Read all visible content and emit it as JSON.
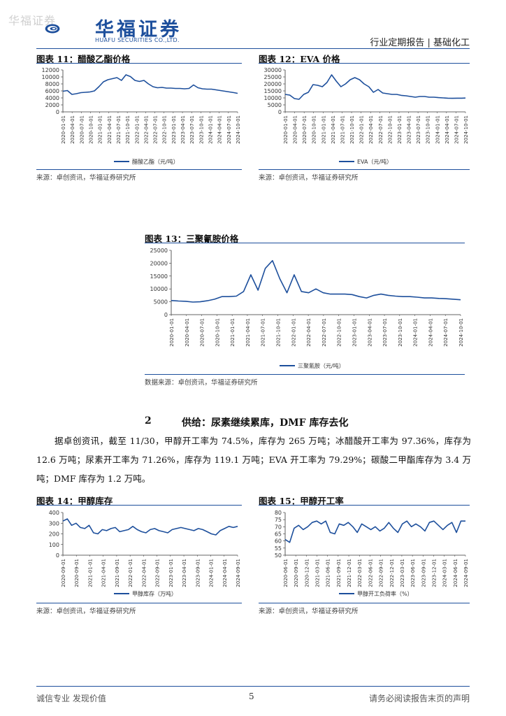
{
  "watermark": "华福证券",
  "header": {
    "logo_cn": "华福证券",
    "logo_en": "HUAFU SECURITIES CO.,LTD.",
    "right_text": "行业定期报告 | 基础化工",
    "brand_color": "#1d4f9c"
  },
  "figures": {
    "fig11": {
      "title": "图表 11：醋酸乙酯价格",
      "source": "来源：卓创资讯，华福证券研究所"
    },
    "fig12": {
      "title": "图表 12：EVA 价格",
      "source": "来源：卓创资讯，华福证券研究所"
    },
    "fig13": {
      "title": "图表 13：三聚氰胺价格",
      "source": "数据来源：卓创资讯，华福证券研究所"
    },
    "fig14": {
      "title": "图表 14：甲醇库存",
      "source": "来源：卓创资讯，华福证券研究所"
    },
    "fig15": {
      "title": "图表 15：甲醇开工率",
      "source": "来源：卓创资讯，华福证券研究所"
    }
  },
  "section": {
    "number": "2",
    "title": "供给：尿素继续累库，DMF 库存去化"
  },
  "paragraph": "据卓创资讯，截至 11/30，甲醇开工率为 74.5%，库存为 265 万吨；冰醋酸开工率为 97.36%，库存为 12.6 万吨；尿素开工率为 71.26%，库存为 119.1 万吨；EVA 开工率为 79.29%；碳酸二甲酯库存为 3.4 万吨；DMF 库存为 1.2 万吨。",
  "footer": {
    "left": "诚信专业  发现价值",
    "page": "5",
    "right": "请务必阅读报告末页的声明"
  },
  "chart_data": [
    {
      "id": "fig11",
      "type": "line",
      "title": "",
      "xlabel": "",
      "ylabel": "",
      "ylim": [
        0,
        12000
      ],
      "yticks": [
        0,
        2000,
        4000,
        6000,
        8000,
        10000,
        12000
      ],
      "xticklabels": [
        "2020-01-01",
        "2020-04-01",
        "2020-07-01",
        "2020-10-01",
        "2021-01-01",
        "2021-04-01",
        "2021-07-01",
        "2021-10-01",
        "2022-01-01",
        "2022-04-01",
        "2022-07-01",
        "2022-10-01",
        "2023-01-01",
        "2023-04-01",
        "2023-07-01",
        "2023-10-01",
        "2024-01-01",
        "2024-04-01",
        "2024-07-01",
        "2024-10-01"
      ],
      "series": [
        {
          "name": "醋酸乙酯（元/吨）",
          "color": "#1d4f9c",
          "x": [
            0,
            0.5,
            1,
            1.5,
            2,
            2.5,
            3,
            3.5,
            4,
            4.5,
            5,
            5.5,
            6,
            6.5,
            7,
            7.5,
            8,
            8.5,
            9,
            9.5,
            10,
            10.5,
            11,
            11.5,
            12,
            12.5,
            13,
            13.5,
            14,
            14.5,
            15,
            15.5,
            16,
            16.5,
            17,
            17.5,
            18,
            18.5,
            19,
            19.4
          ],
          "y": [
            5900,
            6100,
            5000,
            5200,
            5500,
            5600,
            5700,
            6000,
            7200,
            8600,
            9200,
            9500,
            9800,
            9000,
            10600,
            10100,
            9000,
            8700,
            9000,
            8000,
            7200,
            6900,
            7000,
            6800,
            6800,
            6700,
            6700,
            6600,
            6700,
            7700,
            6900,
            6600,
            6500,
            6500,
            6300,
            6100,
            5900,
            5700,
            5500,
            5300
          ]
        }
      ],
      "grid": false,
      "legend": "bottom"
    },
    {
      "id": "fig12",
      "type": "line",
      "title": "",
      "xlabel": "",
      "ylabel": "",
      "ylim": [
        0,
        30000
      ],
      "yticks": [
        0,
        5000,
        10000,
        15000,
        20000,
        25000,
        30000
      ],
      "xticklabels": [
        "2020-01-01",
        "2020-04-01",
        "2020-07-01",
        "2020-10-01",
        "2021-01-01",
        "2021-04-01",
        "2021-07-01",
        "2021-10-01",
        "2022-01-01",
        "2022-04-01",
        "2022-07-01",
        "2022-10-01",
        "2023-01-01",
        "2023-04-01",
        "2023-07-01",
        "2023-10-01",
        "2024-01-01",
        "2024-04-01",
        "2024-07-01",
        "2024-10-01"
      ],
      "series": [
        {
          "name": "EVA（元/吨）",
          "color": "#1d4f9c",
          "x": [
            0,
            0.5,
            1,
            1.5,
            2,
            2.5,
            3,
            3.5,
            4,
            4.5,
            5,
            5.5,
            6,
            6.5,
            7,
            7.5,
            8,
            8.5,
            9,
            9.5,
            10,
            10.5,
            11,
            11.5,
            12,
            12.5,
            13,
            13.5,
            14,
            14.5,
            15,
            15.5,
            16,
            16.5,
            17,
            17.5,
            18,
            18.5,
            19,
            19.4
          ],
          "y": [
            12500,
            12000,
            9500,
            9000,
            12500,
            14000,
            19500,
            19000,
            18000,
            21000,
            26500,
            22000,
            18000,
            20000,
            23000,
            24500,
            23000,
            20000,
            18000,
            14000,
            16000,
            13500,
            13000,
            12500,
            12500,
            11800,
            11500,
            11000,
            10500,
            11000,
            11000,
            10500,
            10500,
            10200,
            10000,
            9800,
            9700,
            9800,
            9800,
            9900
          ]
        }
      ],
      "grid": false,
      "legend": "bottom"
    },
    {
      "id": "fig13",
      "type": "line",
      "title": "",
      "xlabel": "",
      "ylabel": "",
      "ylim": [
        0,
        25000
      ],
      "yticks": [
        0,
        5000,
        10000,
        15000,
        20000,
        25000
      ],
      "xticklabels": [
        "2020-01-01",
        "2020-04-01",
        "2020-07-01",
        "2020-10-01",
        "2021-01-01",
        "2021-04-01",
        "2021-07-01",
        "2021-10-01",
        "2022-01-01",
        "2022-04-01",
        "2022-07-01",
        "2022-10-01",
        "2023-01-01",
        "2023-04-01",
        "2023-07-01",
        "2023-10-01",
        "2024-01-01",
        "2024-04-01",
        "2024-07-01",
        "2024-10-01"
      ],
      "series": [
        {
          "name": "三聚氰胺（元/吨）",
          "color": "#1d4f9c",
          "x": [
            0,
            0.5,
            1,
            1.5,
            2,
            2.5,
            3,
            3.5,
            4,
            4.5,
            5,
            5.5,
            6,
            6.5,
            7,
            7.5,
            8,
            8.5,
            9,
            9.5,
            10,
            10.5,
            11,
            11.5,
            12,
            12.5,
            13,
            13.5,
            14,
            14.5,
            15,
            15.5,
            16,
            16.5,
            17,
            17.5,
            18,
            18.5,
            19,
            19.5,
            20
          ],
          "y": [
            5500,
            5300,
            5200,
            4900,
            5000,
            5400,
            6000,
            7000,
            7000,
            7200,
            9000,
            15500,
            9500,
            18000,
            21000,
            14000,
            8500,
            15500,
            9000,
            8500,
            10000,
            8500,
            8000,
            8000,
            8000,
            7800,
            7000,
            6500,
            7500,
            8000,
            7500,
            7200,
            7000,
            7000,
            6800,
            6500,
            6500,
            6300,
            6200,
            6000,
            5800
          ]
        }
      ],
      "grid": false,
      "legend": "bottom"
    },
    {
      "id": "fig14",
      "type": "line",
      "title": "",
      "xlabel": "",
      "ylabel": "",
      "ylim": [
        0,
        400
      ],
      "yticks": [
        0,
        100,
        200,
        300,
        400
      ],
      "xticklabels": [
        "2020-09-01",
        "2020-09-01",
        "2021-01-01",
        "2021-04-01",
        "2021-09-01",
        "2022-01-01",
        "2022-04-01",
        "2022-09-01",
        "2023-01-01",
        "2023-04-01",
        "2023-09-01",
        "2024-01-01",
        "2024-04-01",
        "2024-09-01"
      ],
      "series": [
        {
          "name": "甲醇库存（万吨）",
          "color": "#1d4f9c",
          "x": [
            0,
            0.5,
            1,
            1.5,
            2,
            2.5,
            3,
            3.5,
            4,
            4.5,
            5,
            5.5,
            6,
            6.5,
            7,
            7.5,
            8,
            8.5,
            9,
            9.5,
            10,
            10.5,
            11,
            11.5,
            12,
            12.5,
            13,
            13.5,
            14,
            14.5,
            15,
            15.5,
            16,
            16.5,
            17,
            17.5,
            18,
            18.5,
            19,
            19.5,
            20
          ],
          "y": [
            320,
            340,
            280,
            300,
            260,
            250,
            280,
            210,
            200,
            240,
            230,
            250,
            260,
            220,
            230,
            240,
            270,
            240,
            220,
            210,
            240,
            250,
            230,
            220,
            210,
            240,
            250,
            260,
            250,
            240,
            230,
            250,
            240,
            220,
            200,
            190,
            230,
            250,
            270,
            260,
            270
          ]
        }
      ],
      "grid": false,
      "legend": "bottom"
    },
    {
      "id": "fig15",
      "type": "line",
      "title": "",
      "xlabel": "",
      "ylabel": "",
      "ylim": [
        50,
        80
      ],
      "yticks": [
        50,
        55,
        60,
        65,
        70,
        75,
        80
      ],
      "xticklabels": [
        "2020-06-01",
        "2020-09-01",
        "2020-12-01",
        "2021-03-01",
        "2021-06-01",
        "2021-09-01",
        "2021-12-01",
        "2022-03-01",
        "2022-06-01",
        "2022-09-01",
        "2022-12-01",
        "2023-03-01",
        "2023-06-01",
        "2023-09-01",
        "2023-12-01",
        "2024-03-01",
        "2024-06-01",
        "2024-09-01"
      ],
      "series": [
        {
          "name": "甲醇开工负荷率（%）",
          "color": "#1d4f9c",
          "x": [
            0,
            0.5,
            1,
            1.5,
            2,
            2.5,
            3,
            3.5,
            4,
            4.5,
            5,
            5.5,
            6,
            6.5,
            7,
            7.5,
            8,
            8.5,
            9,
            9.5,
            10,
            10.5,
            11,
            11.5,
            12,
            12.5,
            13,
            13.5,
            14,
            14.5,
            15,
            15.5,
            16,
            16.5,
            17,
            17.5,
            18,
            18.5,
            19,
            19.5,
            20
          ],
          "y": [
            61,
            59,
            69,
            71,
            68,
            70,
            73,
            74,
            72,
            74,
            66,
            65,
            72,
            71,
            73,
            70,
            66,
            72,
            70,
            68,
            70,
            67,
            69,
            73,
            69,
            66,
            72,
            74,
            70,
            72,
            70,
            67,
            73,
            74,
            71,
            68,
            71,
            73,
            66,
            74,
            74
          ]
        }
      ],
      "grid": false,
      "legend": "bottom"
    }
  ]
}
